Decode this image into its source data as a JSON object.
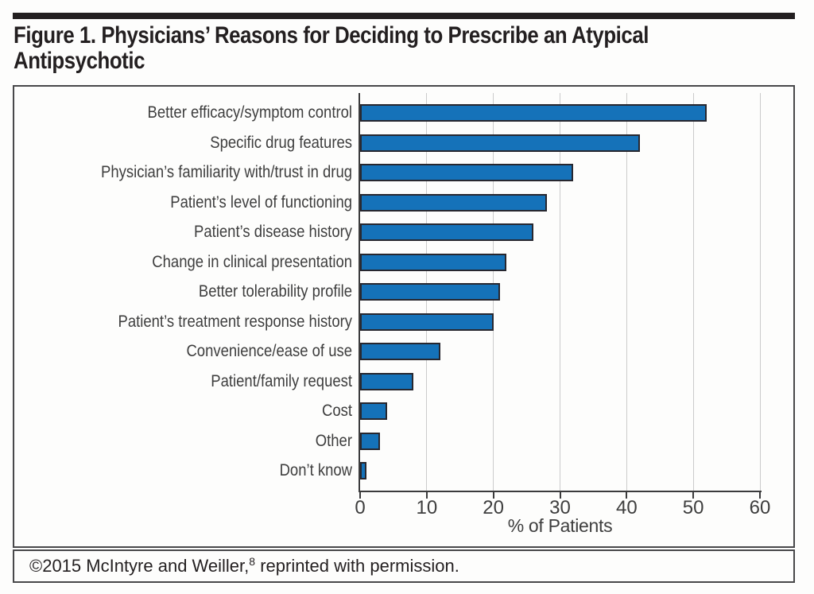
{
  "title": {
    "line1": "Figure 1. Physicians’ Reasons for Deciding to Prescribe an Atypical",
    "line2": "Antipsychotic"
  },
  "footer": {
    "pre": "©2015 McIntyre and Weiller,",
    "sup": "8",
    "post": " reprinted with permission."
  },
  "colors": {
    "bar_fill": "#1572B9",
    "bar_border": "#27272F",
    "axis": "#3B3B3C",
    "gridline": "#CBCBCB",
    "box_border": "#48484A",
    "text": "#231F20",
    "label": "#3E3E3E"
  },
  "chart_data": {
    "type": "bar",
    "orientation": "horizontal",
    "title": "Figure 1. Physicians’ Reasons for Deciding to Prescribe an Atypical Antipsychotic",
    "categories": [
      "Better efficacy/symptom control",
      "Specific drug features",
      "Physician’s familiarity with/trust in drug",
      "Patient’s level of functioning",
      "Patient’s disease history",
      "Change in clinical presentation",
      "Better tolerability profile",
      "Patient’s treatment response history",
      "Convenience/ease of use",
      "Patient/family request",
      "Cost",
      "Other",
      "Don’t know"
    ],
    "values": [
      52,
      42,
      32,
      28,
      26,
      22,
      21,
      20,
      12,
      8,
      4,
      3,
      1
    ],
    "xlabel": "% of Patients",
    "xlim": [
      0,
      60
    ],
    "xticks": [
      0,
      10,
      20,
      30,
      40,
      50,
      60
    ],
    "grid": true,
    "legend": false
  }
}
